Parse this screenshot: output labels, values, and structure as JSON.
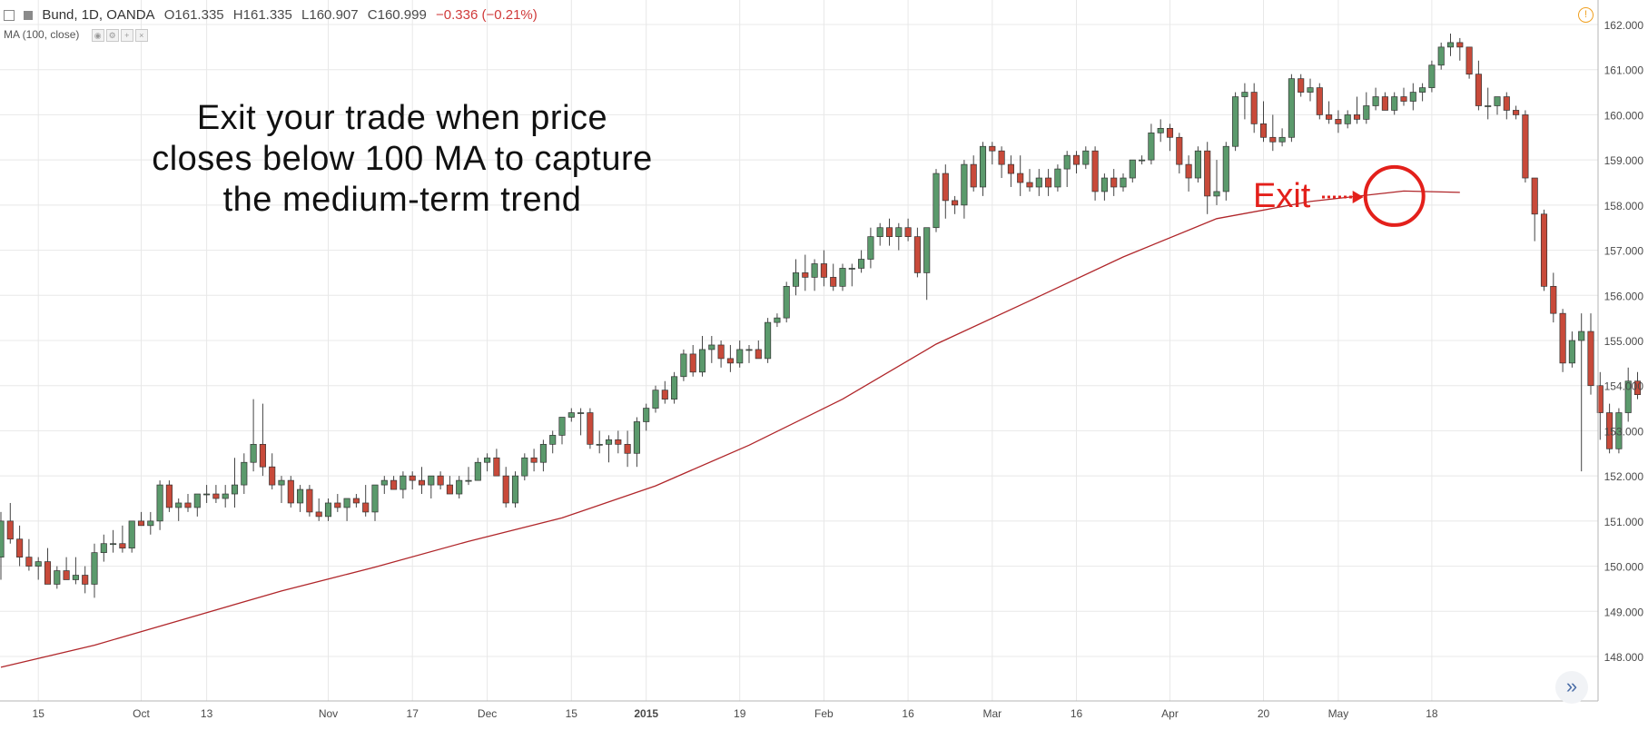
{
  "header": {
    "symbol": "Bund, 1D, OANDA",
    "open": "O161.335",
    "high": "H161.335",
    "low": "L160.907",
    "close": "C160.999",
    "change": "−0.336 (−0.21%)"
  },
  "indicator": {
    "label": "MA (100, close)"
  },
  "annotation": {
    "lines": [
      "Exit your trade when price",
      "closes below 100 MA to capture",
      "the medium-term trend"
    ],
    "exit_label": "Exit"
  },
  "colors": {
    "up": "#5b9a6c",
    "down": "#c84a3a",
    "ma": "#b0262a",
    "exit": "#e3201b",
    "grid": "#e8e8e8"
  },
  "chart_data": {
    "type": "candlestick",
    "title": "Bund, 1D, OANDA",
    "ylim": [
      147.3,
      162.4
    ],
    "y_ticks": [
      148,
      149,
      150,
      151,
      152,
      153,
      154,
      155,
      156,
      157,
      158,
      159,
      160,
      161,
      162
    ],
    "y_tick_labels": [
      "148.000",
      "149.000",
      "150.000",
      "151.000",
      "152.000",
      "153.000",
      "154.000",
      "155.000",
      "156.000",
      "157.000",
      "158.000",
      "159.000",
      "160.000",
      "161.000",
      "162.000"
    ],
    "x_labels": [
      {
        "label": "15",
        "i": 4
      },
      {
        "label": "Oct",
        "i": 15
      },
      {
        "label": "13",
        "i": 22
      },
      {
        "label": "Nov",
        "i": 35
      },
      {
        "label": "17",
        "i": 44
      },
      {
        "label": "Dec",
        "i": 52
      },
      {
        "label": "15",
        "i": 61
      },
      {
        "label": "2015",
        "i": 69
      },
      {
        "label": "19",
        "i": 79
      },
      {
        "label": "Feb",
        "i": 88
      },
      {
        "label": "16",
        "i": 97
      },
      {
        "label": "Mar",
        "i": 106
      },
      {
        "label": "16",
        "i": 115
      },
      {
        "label": "Apr",
        "i": 125
      },
      {
        "label": "20",
        "i": 135
      },
      {
        "label": "May",
        "i": 143
      },
      {
        "label": "18",
        "i": 153
      }
    ],
    "candles": [
      [
        150.2,
        151.2,
        149.7,
        151.0
      ],
      [
        151.0,
        151.4,
        150.5,
        150.6
      ],
      [
        150.6,
        150.9,
        150.0,
        150.2
      ],
      [
        150.2,
        150.6,
        149.9,
        150.0
      ],
      [
        150.0,
        150.2,
        149.7,
        150.1
      ],
      [
        150.1,
        150.4,
        149.6,
        149.6
      ],
      [
        149.6,
        150.0,
        149.5,
        149.9
      ],
      [
        149.9,
        150.2,
        149.7,
        149.7
      ],
      [
        149.7,
        150.2,
        149.6,
        149.8
      ],
      [
        149.8,
        150.0,
        149.4,
        149.6
      ],
      [
        149.6,
        150.5,
        149.3,
        150.3
      ],
      [
        150.3,
        150.7,
        150.1,
        150.5
      ],
      [
        150.5,
        150.8,
        150.3,
        150.5
      ],
      [
        150.5,
        150.9,
        150.3,
        150.4
      ],
      [
        150.4,
        151.0,
        150.3,
        151.0
      ],
      [
        151.0,
        151.2,
        150.9,
        150.9
      ],
      [
        150.9,
        151.2,
        150.7,
        151.0
      ],
      [
        151.0,
        151.9,
        150.8,
        151.8
      ],
      [
        151.8,
        151.9,
        151.2,
        151.3
      ],
      [
        151.3,
        151.5,
        151.0,
        151.4
      ],
      [
        151.4,
        151.6,
        151.2,
        151.3
      ],
      [
        151.3,
        151.6,
        151.1,
        151.6
      ],
      [
        151.6,
        151.8,
        151.4,
        151.6
      ],
      [
        151.6,
        151.8,
        151.4,
        151.5
      ],
      [
        151.5,
        151.8,
        151.3,
        151.6
      ],
      [
        151.6,
        152.4,
        151.3,
        151.8
      ],
      [
        151.8,
        152.5,
        151.6,
        152.3
      ],
      [
        152.3,
        153.7,
        152.1,
        152.7
      ],
      [
        152.7,
        153.6,
        152.0,
        152.2
      ],
      [
        152.2,
        152.5,
        151.7,
        151.8
      ],
      [
        151.8,
        152.0,
        151.4,
        151.9
      ],
      [
        151.9,
        152.0,
        151.3,
        151.4
      ],
      [
        151.4,
        151.8,
        151.2,
        151.7
      ],
      [
        151.7,
        151.8,
        151.1,
        151.2
      ],
      [
        151.2,
        151.5,
        151.0,
        151.1
      ],
      [
        151.1,
        151.5,
        151.0,
        151.4
      ],
      [
        151.4,
        151.6,
        151.2,
        151.3
      ],
      [
        151.3,
        151.5,
        151.0,
        151.5
      ],
      [
        151.5,
        151.6,
        151.3,
        151.4
      ],
      [
        151.4,
        151.8,
        151.1,
        151.2
      ],
      [
        151.2,
        151.8,
        151.0,
        151.8
      ],
      [
        151.8,
        152.0,
        151.6,
        151.9
      ],
      [
        151.9,
        152.0,
        151.7,
        151.7
      ],
      [
        151.7,
        152.1,
        151.5,
        152.0
      ],
      [
        152.0,
        152.1,
        151.7,
        151.9
      ],
      [
        151.9,
        152.2,
        151.6,
        151.8
      ],
      [
        151.8,
        152.0,
        151.5,
        152.0
      ],
      [
        152.0,
        152.1,
        151.7,
        151.8
      ],
      [
        151.8,
        152.0,
        151.6,
        151.6
      ],
      [
        151.6,
        152.0,
        151.5,
        151.9
      ],
      [
        151.9,
        152.2,
        151.8,
        151.9
      ],
      [
        151.9,
        152.4,
        151.9,
        152.3
      ],
      [
        152.3,
        152.5,
        152.1,
        152.4
      ],
      [
        152.4,
        152.6,
        152.1,
        152.0
      ],
      [
        152.0,
        152.2,
        151.3,
        151.4
      ],
      [
        151.4,
        152.1,
        151.3,
        152.0
      ],
      [
        152.0,
        152.5,
        151.9,
        152.4
      ],
      [
        152.4,
        152.6,
        152.1,
        152.3
      ],
      [
        152.3,
        152.8,
        152.1,
        152.7
      ],
      [
        152.7,
        153.0,
        152.5,
        152.9
      ],
      [
        152.9,
        153.3,
        152.7,
        153.3
      ],
      [
        153.3,
        153.5,
        153.2,
        153.4
      ],
      [
        153.4,
        153.5,
        152.9,
        153.4
      ],
      [
        153.4,
        153.5,
        152.6,
        152.7
      ],
      [
        152.7,
        153.0,
        152.5,
        152.7
      ],
      [
        152.7,
        152.9,
        152.3,
        152.8
      ],
      [
        152.8,
        153.0,
        152.5,
        152.7
      ],
      [
        152.7,
        153.0,
        152.2,
        152.5
      ],
      [
        152.5,
        153.3,
        152.2,
        153.2
      ],
      [
        153.2,
        153.6,
        153.0,
        153.5
      ],
      [
        153.5,
        154.0,
        153.4,
        153.9
      ],
      [
        153.9,
        154.1,
        153.6,
        153.7
      ],
      [
        153.7,
        154.3,
        153.6,
        154.2
      ],
      [
        154.2,
        154.8,
        154.1,
        154.7
      ],
      [
        154.7,
        154.9,
        154.2,
        154.3
      ],
      [
        154.3,
        155.1,
        154.2,
        154.8
      ],
      [
        154.8,
        155.1,
        154.5,
        154.9
      ],
      [
        154.9,
        155.0,
        154.4,
        154.6
      ],
      [
        154.6,
        154.9,
        154.3,
        154.5
      ],
      [
        154.5,
        155.0,
        154.4,
        154.8
      ],
      [
        154.8,
        154.9,
        154.5,
        154.8
      ],
      [
        154.8,
        155.0,
        154.6,
        154.6
      ],
      [
        154.6,
        155.5,
        154.5,
        155.4
      ],
      [
        155.4,
        155.6,
        155.3,
        155.5
      ],
      [
        155.5,
        156.3,
        155.4,
        156.2
      ],
      [
        156.2,
        156.8,
        156.0,
        156.5
      ],
      [
        156.5,
        156.9,
        156.1,
        156.4
      ],
      [
        156.4,
        156.8,
        156.1,
        156.7
      ],
      [
        156.7,
        157.0,
        156.2,
        156.4
      ],
      [
        156.4,
        156.7,
        156.1,
        156.2
      ],
      [
        156.2,
        156.7,
        156.1,
        156.6
      ],
      [
        156.6,
        156.7,
        156.2,
        156.6
      ],
      [
        156.6,
        157.0,
        156.5,
        156.8
      ],
      [
        156.8,
        157.5,
        156.6,
        157.3
      ],
      [
        157.3,
        157.6,
        157.1,
        157.5
      ],
      [
        157.5,
        157.7,
        157.1,
        157.3
      ],
      [
        157.3,
        157.6,
        157.0,
        157.5
      ],
      [
        157.5,
        157.7,
        157.2,
        157.3
      ],
      [
        157.3,
        157.5,
        156.4,
        156.5
      ],
      [
        156.5,
        157.4,
        155.9,
        157.5
      ],
      [
        157.5,
        158.8,
        157.4,
        158.7
      ],
      [
        158.7,
        158.9,
        157.7,
        158.1
      ],
      [
        158.1,
        158.2,
        157.8,
        158.0
      ],
      [
        158.0,
        159.0,
        157.7,
        158.9
      ],
      [
        158.9,
        159.1,
        158.3,
        158.4
      ],
      [
        158.4,
        159.4,
        158.2,
        159.3
      ],
      [
        159.3,
        159.4,
        158.9,
        159.2
      ],
      [
        159.2,
        159.3,
        158.6,
        158.9
      ],
      [
        158.9,
        159.1,
        158.4,
        158.7
      ],
      [
        158.7,
        159.1,
        158.2,
        158.5
      ],
      [
        158.5,
        158.8,
        158.3,
        158.4
      ],
      [
        158.4,
        158.8,
        158.2,
        158.6
      ],
      [
        158.6,
        158.8,
        158.2,
        158.4
      ],
      [
        158.4,
        158.9,
        158.3,
        158.8
      ],
      [
        158.8,
        159.2,
        158.4,
        159.1
      ],
      [
        159.1,
        159.2,
        158.7,
        158.9
      ],
      [
        158.9,
        159.3,
        158.8,
        159.2
      ],
      [
        159.2,
        159.3,
        158.1,
        158.3
      ],
      [
        158.3,
        158.7,
        158.1,
        158.6
      ],
      [
        158.6,
        158.8,
        158.2,
        158.4
      ],
      [
        158.4,
        158.7,
        158.3,
        158.6
      ],
      [
        158.6,
        159.0,
        158.5,
        159.0
      ],
      [
        159.0,
        159.1,
        158.9,
        159.0
      ],
      [
        159.0,
        159.8,
        158.9,
        159.6
      ],
      [
        159.6,
        159.9,
        159.4,
        159.7
      ],
      [
        159.7,
        159.8,
        159.2,
        159.5
      ],
      [
        159.5,
        159.6,
        158.7,
        158.9
      ],
      [
        158.9,
        159.1,
        158.3,
        158.6
      ],
      [
        158.6,
        159.3,
        158.5,
        159.2
      ],
      [
        159.2,
        159.4,
        157.8,
        158.2
      ],
      [
        158.2,
        159.0,
        158.0,
        158.3
      ],
      [
        158.3,
        159.4,
        158.1,
        159.3
      ],
      [
        159.3,
        160.5,
        159.2,
        160.4
      ],
      [
        160.4,
        160.7,
        159.9,
        160.5
      ],
      [
        160.5,
        160.7,
        159.6,
        159.8
      ],
      [
        159.8,
        160.3,
        159.4,
        159.5
      ],
      [
        159.5,
        160.0,
        159.2,
        159.4
      ],
      [
        159.4,
        159.7,
        159.3,
        159.5
      ],
      [
        159.5,
        160.9,
        159.4,
        160.8
      ],
      [
        160.8,
        160.9,
        160.4,
        160.5
      ],
      [
        160.5,
        160.8,
        160.3,
        160.6
      ],
      [
        160.6,
        160.7,
        159.9,
        160.0
      ],
      [
        160.0,
        160.3,
        159.8,
        159.9
      ],
      [
        159.9,
        160.1,
        159.6,
        159.8
      ],
      [
        159.8,
        160.1,
        159.7,
        160.0
      ],
      [
        160.0,
        160.4,
        159.8,
        159.9
      ],
      [
        159.9,
        160.5,
        159.8,
        160.2
      ],
      [
        160.2,
        160.6,
        160.1,
        160.4
      ],
      [
        160.4,
        160.5,
        160.1,
        160.1
      ],
      [
        160.1,
        160.5,
        160.0,
        160.4
      ],
      [
        160.4,
        160.6,
        160.2,
        160.3
      ],
      [
        160.3,
        160.7,
        160.1,
        160.5
      ],
      [
        160.5,
        160.7,
        160.3,
        160.6
      ],
      [
        160.6,
        161.2,
        160.5,
        161.1
      ],
      [
        161.1,
        161.6,
        161.0,
        161.5
      ],
      [
        161.5,
        161.8,
        161.3,
        161.6
      ],
      [
        161.6,
        161.7,
        161.2,
        161.5
      ],
      [
        161.5,
        161.5,
        160.8,
        160.9
      ],
      [
        160.9,
        161.2,
        160.1,
        160.2
      ],
      [
        160.2,
        160.6,
        159.9,
        160.2
      ],
      [
        160.2,
        160.4,
        160.0,
        160.4
      ],
      [
        160.4,
        160.5,
        159.9,
        160.1
      ],
      [
        160.1,
        160.2,
        159.9,
        160.0
      ],
      [
        160.0,
        160.1,
        158.5,
        158.6
      ],
      [
        158.6,
        158.6,
        157.2,
        157.8
      ],
      [
        157.8,
        157.9,
        156.1,
        156.2
      ],
      [
        156.2,
        156.5,
        155.4,
        155.6
      ],
      [
        155.6,
        155.7,
        154.3,
        154.5
      ],
      [
        154.5,
        155.2,
        154.4,
        155.0
      ],
      [
        155.0,
        155.6,
        152.1,
        155.2
      ],
      [
        155.2,
        155.6,
        153.8,
        154.0
      ],
      [
        154.0,
        154.3,
        152.8,
        153.4
      ],
      [
        153.4,
        153.6,
        152.5,
        152.6
      ],
      [
        152.6,
        153.5,
        152.5,
        153.4
      ],
      [
        153.4,
        154.4,
        153.2,
        154.1
      ],
      [
        154.1,
        154.3,
        153.7,
        153.8
      ]
    ],
    "ma_series": {
      "name": "MA (100, close)",
      "x_index": [
        0,
        10,
        20,
        30,
        40,
        50,
        60,
        70,
        80,
        90,
        100,
        110,
        120,
        130,
        140,
        150,
        156
      ],
      "values": [
        147.76,
        148.25,
        148.85,
        149.45,
        149.98,
        150.55,
        151.07,
        151.78,
        152.68,
        153.7,
        154.92,
        155.88,
        156.85,
        157.7,
        158.08,
        158.31,
        158.28
      ]
    }
  }
}
